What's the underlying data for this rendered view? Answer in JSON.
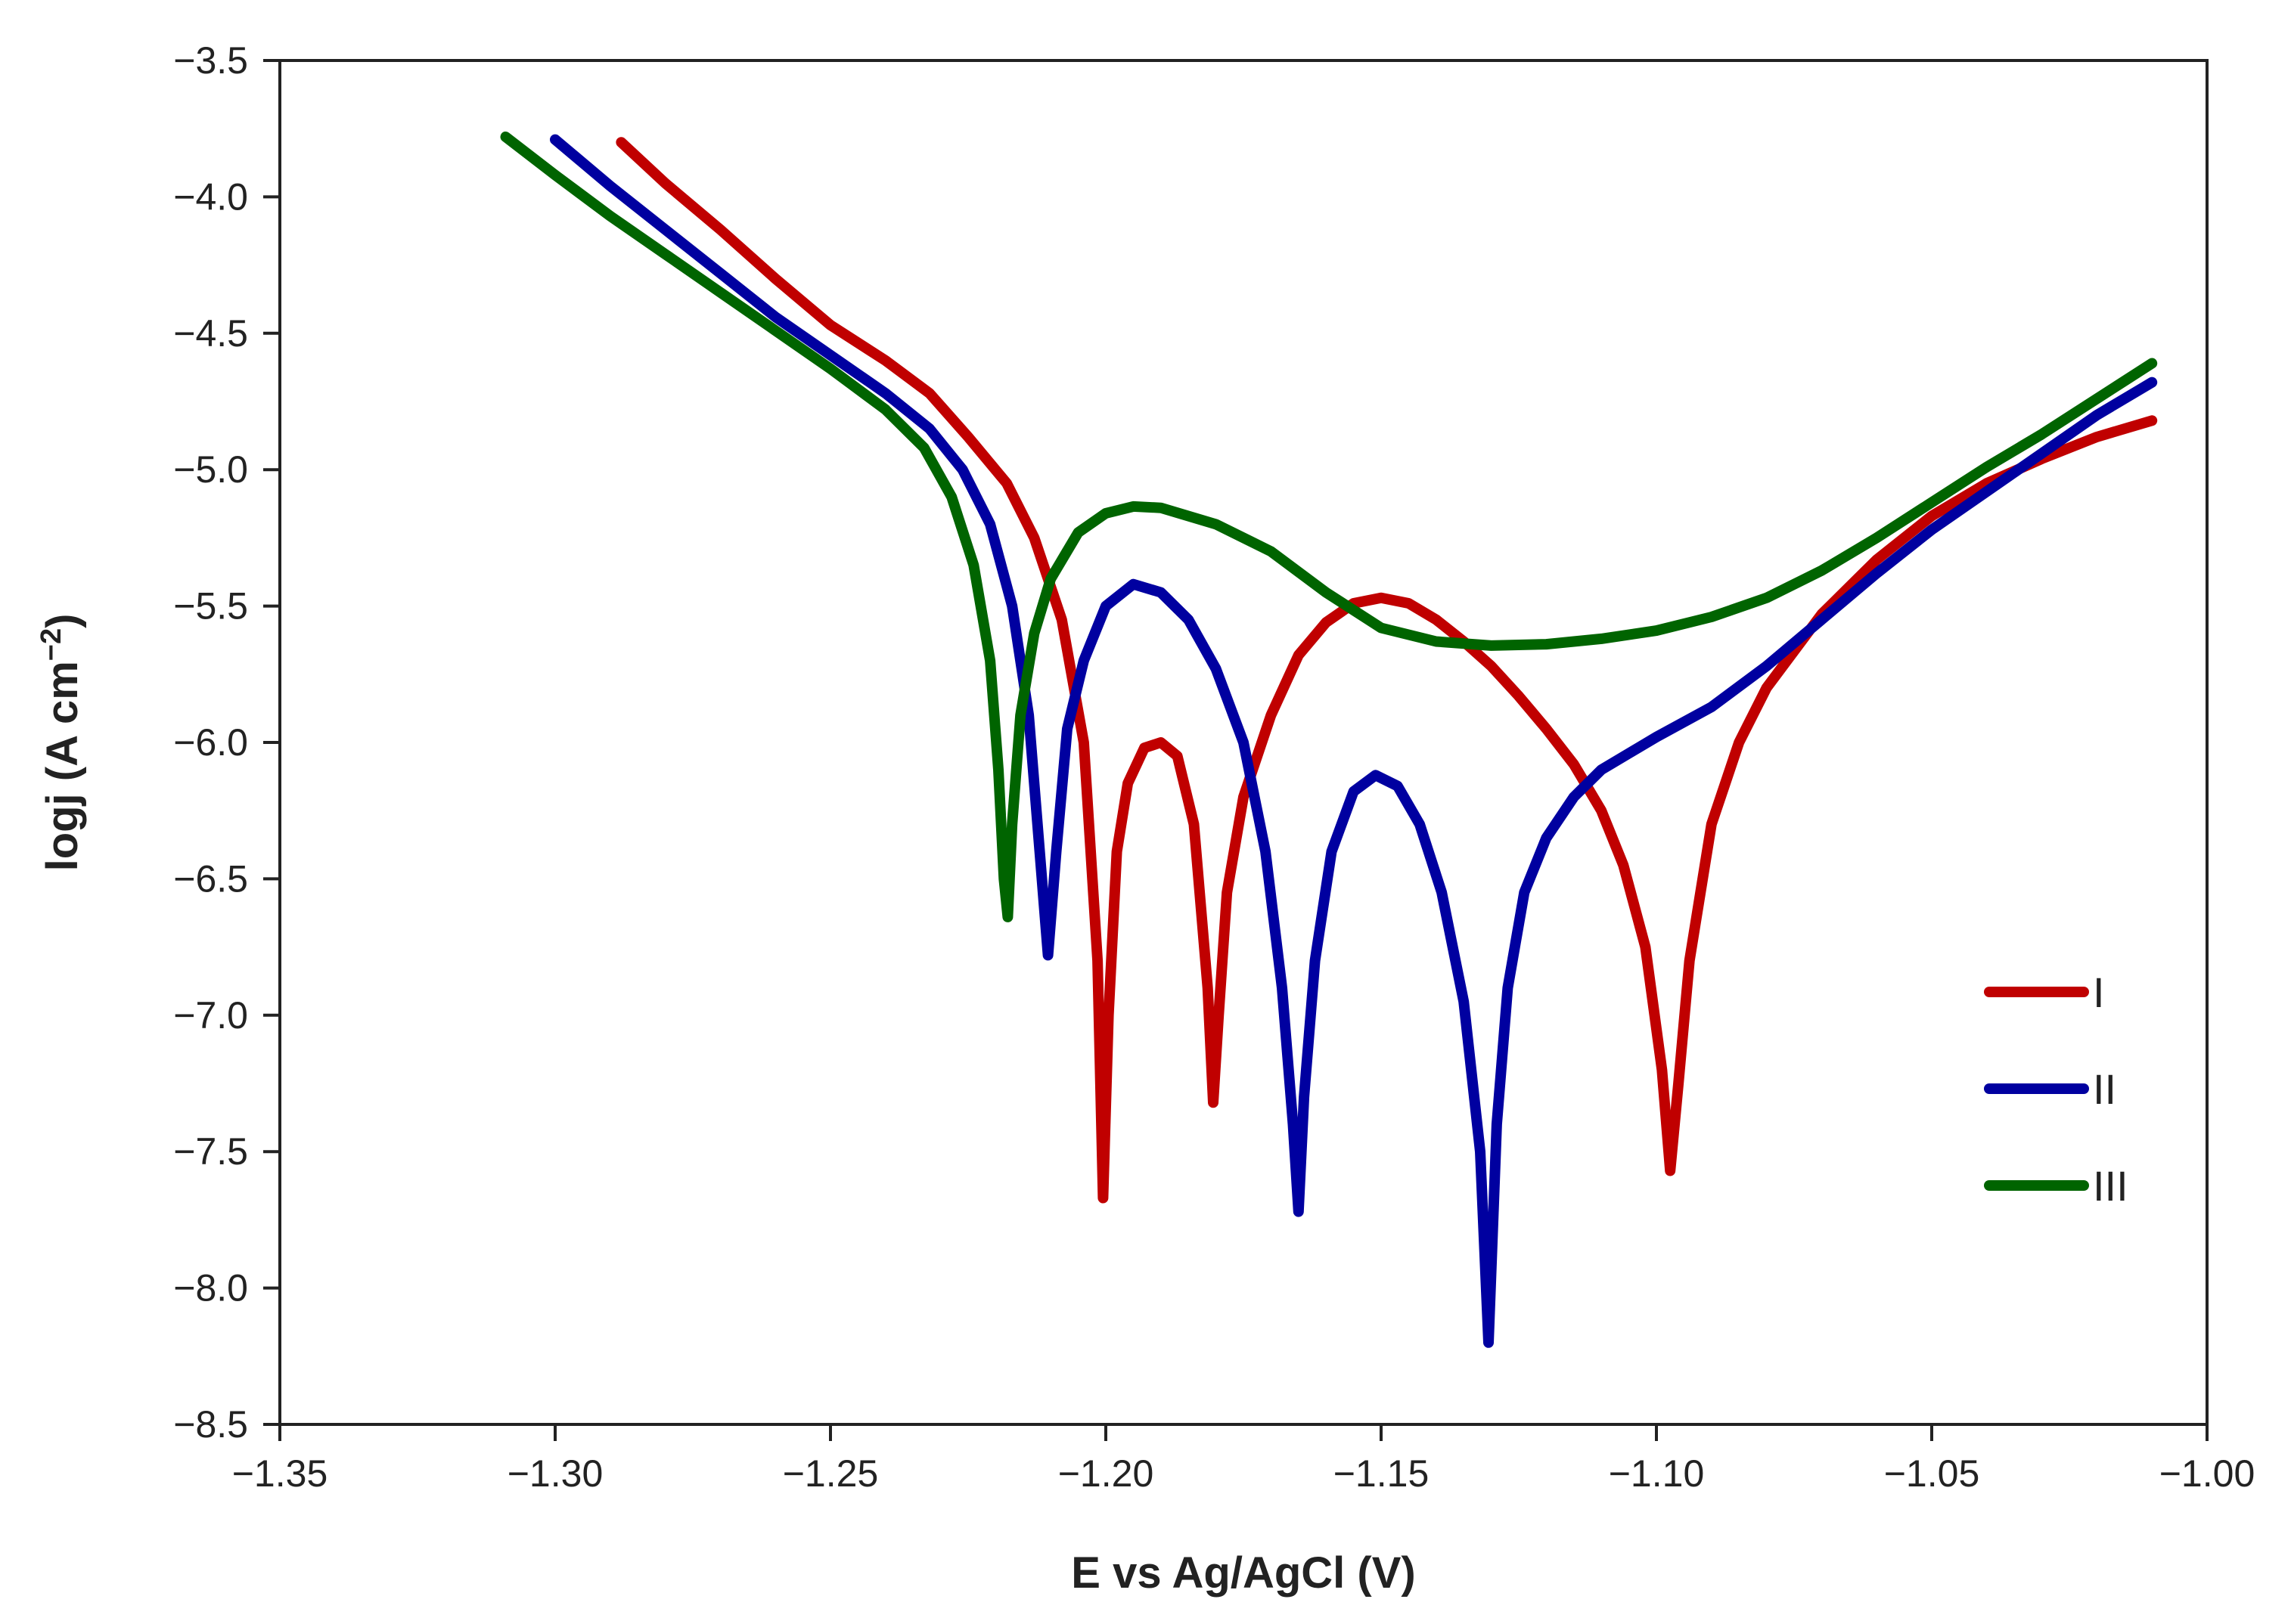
{
  "chart_data": {
    "type": "line",
    "title": "",
    "xlabel": "E vs Ag/AgCl (V)",
    "ylabel_main": "logj (A cm",
    "ylabel_sup": "−2",
    "ylabel_close": ")",
    "xlim": [
      -1.35,
      -1.0
    ],
    "ylim": [
      -8.5,
      -3.5
    ],
    "grid": false,
    "legend_position": "bottom-right",
    "x_ticks": [
      -1.35,
      -1.3,
      -1.25,
      -1.2,
      -1.15,
      -1.1,
      -1.05,
      -1.0
    ],
    "x_tick_labels": [
      "−1.35",
      "−1.30",
      "−1.25",
      "−1.20",
      "−1.15",
      "−1.10",
      "−1.05",
      "−1.00"
    ],
    "y_ticks": [
      -3.5,
      -4.0,
      -4.5,
      -5.0,
      -5.5,
      -6.0,
      -6.5,
      -7.0,
      -7.5,
      -8.0,
      -8.5
    ],
    "y_tick_labels": [
      "−3.5",
      "−4.0",
      "−4.5",
      "−5.0",
      "−5.5",
      "−6.0",
      "−6.5",
      "−7.0",
      "−7.5",
      "−8.0",
      "−8.5"
    ],
    "series": [
      {
        "name": "I",
        "color": "#c00000",
        "points": [
          [
            -1.288,
            -3.8
          ],
          [
            -1.28,
            -3.95
          ],
          [
            -1.27,
            -4.12
          ],
          [
            -1.26,
            -4.3
          ],
          [
            -1.25,
            -4.47
          ],
          [
            -1.24,
            -4.6
          ],
          [
            -1.232,
            -4.72
          ],
          [
            -1.225,
            -4.88
          ],
          [
            -1.218,
            -5.05
          ],
          [
            -1.213,
            -5.25
          ],
          [
            -1.208,
            -5.55
          ],
          [
            -1.204,
            -6.0
          ],
          [
            -1.2015,
            -6.8
          ],
          [
            -1.2005,
            -7.67
          ],
          [
            -1.1995,
            -7.0
          ],
          [
            -1.198,
            -6.4
          ],
          [
            -1.196,
            -6.15
          ],
          [
            -1.193,
            -6.02
          ],
          [
            -1.19,
            -6.0
          ],
          [
            -1.187,
            -6.05
          ],
          [
            -1.184,
            -6.3
          ],
          [
            -1.1815,
            -6.9
          ],
          [
            -1.1805,
            -7.32
          ],
          [
            -1.1795,
            -7.0
          ],
          [
            -1.178,
            -6.55
          ],
          [
            -1.175,
            -6.2
          ],
          [
            -1.17,
            -5.9
          ],
          [
            -1.165,
            -5.68
          ],
          [
            -1.16,
            -5.56
          ],
          [
            -1.155,
            -5.49
          ],
          [
            -1.15,
            -5.47
          ],
          [
            -1.145,
            -5.49
          ],
          [
            -1.14,
            -5.55
          ],
          [
            -1.135,
            -5.63
          ],
          [
            -1.13,
            -5.72
          ],
          [
            -1.125,
            -5.83
          ],
          [
            -1.12,
            -5.95
          ],
          [
            -1.115,
            -6.08
          ],
          [
            -1.11,
            -6.25
          ],
          [
            -1.106,
            -6.45
          ],
          [
            -1.102,
            -6.75
          ],
          [
            -1.099,
            -7.2
          ],
          [
            -1.0975,
            -7.57
          ],
          [
            -1.096,
            -7.25
          ],
          [
            -1.094,
            -6.8
          ],
          [
            -1.09,
            -6.3
          ],
          [
            -1.085,
            -6.0
          ],
          [
            -1.08,
            -5.8
          ],
          [
            -1.07,
            -5.53
          ],
          [
            -1.06,
            -5.33
          ],
          [
            -1.05,
            -5.17
          ],
          [
            -1.04,
            -5.05
          ],
          [
            -1.03,
            -4.96
          ],
          [
            -1.02,
            -4.88
          ],
          [
            -1.01,
            -4.82
          ]
        ]
      },
      {
        "name": "II",
        "color": "#0000a0",
        "points": [
          [
            -1.3,
            -3.79
          ],
          [
            -1.29,
            -3.96
          ],
          [
            -1.28,
            -4.12
          ],
          [
            -1.27,
            -4.28
          ],
          [
            -1.26,
            -4.44
          ],
          [
            -1.25,
            -4.58
          ],
          [
            -1.24,
            -4.72
          ],
          [
            -1.232,
            -4.85
          ],
          [
            -1.226,
            -5.0
          ],
          [
            -1.221,
            -5.2
          ],
          [
            -1.217,
            -5.5
          ],
          [
            -1.214,
            -5.9
          ],
          [
            -1.212,
            -6.4
          ],
          [
            -1.2105,
            -6.78
          ],
          [
            -1.209,
            -6.4
          ],
          [
            -1.207,
            -5.95
          ],
          [
            -1.204,
            -5.7
          ],
          [
            -1.2,
            -5.5
          ],
          [
            -1.195,
            -5.42
          ],
          [
            -1.19,
            -5.45
          ],
          [
            -1.185,
            -5.55
          ],
          [
            -1.18,
            -5.73
          ],
          [
            -1.175,
            -6.0
          ],
          [
            -1.171,
            -6.4
          ],
          [
            -1.168,
            -6.9
          ],
          [
            -1.166,
            -7.4
          ],
          [
            -1.165,
            -7.72
          ],
          [
            -1.164,
            -7.3
          ],
          [
            -1.162,
            -6.8
          ],
          [
            -1.159,
            -6.4
          ],
          [
            -1.155,
            -6.18
          ],
          [
            -1.151,
            -6.12
          ],
          [
            -1.147,
            -6.16
          ],
          [
            -1.143,
            -6.3
          ],
          [
            -1.139,
            -6.55
          ],
          [
            -1.135,
            -6.95
          ],
          [
            -1.132,
            -7.5
          ],
          [
            -1.1305,
            -8.2
          ],
          [
            -1.129,
            -7.4
          ],
          [
            -1.127,
            -6.9
          ],
          [
            -1.124,
            -6.55
          ],
          [
            -1.12,
            -6.35
          ],
          [
            -1.115,
            -6.2
          ],
          [
            -1.11,
            -6.1
          ],
          [
            -1.1,
            -5.98
          ],
          [
            -1.09,
            -5.87
          ],
          [
            -1.08,
            -5.72
          ],
          [
            -1.07,
            -5.55
          ],
          [
            -1.06,
            -5.38
          ],
          [
            -1.05,
            -5.22
          ],
          [
            -1.04,
            -5.08
          ],
          [
            -1.03,
            -4.94
          ],
          [
            -1.02,
            -4.8
          ],
          [
            -1.01,
            -4.68
          ]
        ]
      },
      {
        "name": "III",
        "color": "#006400",
        "points": [
          [
            -1.309,
            -3.78
          ],
          [
            -1.3,
            -3.92
          ],
          [
            -1.29,
            -4.07
          ],
          [
            -1.28,
            -4.21
          ],
          [
            -1.27,
            -4.35
          ],
          [
            -1.26,
            -4.49
          ],
          [
            -1.25,
            -4.63
          ],
          [
            -1.24,
            -4.78
          ],
          [
            -1.233,
            -4.92
          ],
          [
            -1.228,
            -5.1
          ],
          [
            -1.224,
            -5.35
          ],
          [
            -1.221,
            -5.7
          ],
          [
            -1.2195,
            -6.1
          ],
          [
            -1.2185,
            -6.5
          ],
          [
            -1.2178,
            -6.64
          ],
          [
            -1.217,
            -6.3
          ],
          [
            -1.2155,
            -5.9
          ],
          [
            -1.213,
            -5.6
          ],
          [
            -1.21,
            -5.4
          ],
          [
            -1.205,
            -5.23
          ],
          [
            -1.2,
            -5.16
          ],
          [
            -1.195,
            -5.135
          ],
          [
            -1.19,
            -5.14
          ],
          [
            -1.18,
            -5.2
          ],
          [
            -1.17,
            -5.3
          ],
          [
            -1.16,
            -5.45
          ],
          [
            -1.15,
            -5.58
          ],
          [
            -1.14,
            -5.63
          ],
          [
            -1.13,
            -5.645
          ],
          [
            -1.12,
            -5.64
          ],
          [
            -1.11,
            -5.62
          ],
          [
            -1.1,
            -5.59
          ],
          [
            -1.09,
            -5.54
          ],
          [
            -1.08,
            -5.47
          ],
          [
            -1.07,
            -5.37
          ],
          [
            -1.06,
            -5.25
          ],
          [
            -1.05,
            -5.12
          ],
          [
            -1.04,
            -4.99
          ],
          [
            -1.03,
            -4.87
          ],
          [
            -1.02,
            -4.74
          ],
          [
            -1.01,
            -4.61
          ]
        ]
      }
    ]
  }
}
